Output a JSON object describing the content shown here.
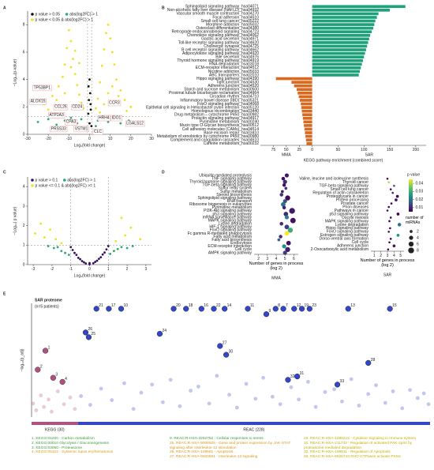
{
  "chart_data": [
    {
      "panel": "A",
      "type": "scatter",
      "xlabel": "Log₂(fold change)",
      "ylabel": "−Log₁₀(p-value)",
      "xlim": [
        -30,
        30
      ],
      "xticks": [
        -30,
        -20,
        -10,
        0,
        10,
        20,
        30
      ],
      "ylim": [
        0,
        9
      ],
      "yticks": [
        0,
        2,
        4,
        6,
        8
      ],
      "thresholds": {
        "x": [
          -1,
          1
        ],
        "y": 1.3
      },
      "series": [
        {
          "name": "p value > 0.05",
          "color": "#111111",
          "x": [
            -0.9,
            -0.6,
            -0.3,
            0,
            0.3,
            0.6,
            0.9,
            -0.5,
            0.5,
            0
          ],
          "values": [
            0.5,
            1.5,
            2.5,
            0.8,
            3.0,
            1.8,
            0.6,
            3.5,
            2.2,
            4.0
          ]
        },
        {
          "name": "abs(log2FC) > 1",
          "color": "#2fa784",
          "x": [
            -25,
            -20,
            -16,
            -12,
            -9,
            -6,
            -4,
            -3,
            3,
            4,
            6,
            9,
            12,
            15,
            19,
            24
          ],
          "values": [
            0.9,
            1.1,
            0.7,
            1.0,
            1.2,
            0.8,
            1.1,
            0.5,
            0.6,
            1.0,
            1.2,
            0.9,
            1.1,
            0.8,
            1.0,
            0.7
          ]
        },
        {
          "name": "p value < 0.05 & abs(log2FC) > 1",
          "color": "#eee12a",
          "x": [
            -22,
            -18,
            -15,
            -13,
            -12,
            -11,
            -10,
            -9,
            -8,
            -7,
            -6,
            -5,
            -4,
            -3,
            -14,
            -12,
            -9,
            -7,
            -5,
            -16,
            -20,
            3,
            4,
            5,
            6,
            7,
            8,
            9,
            10,
            11,
            12,
            13,
            15,
            17,
            20,
            5,
            7,
            9,
            11,
            14,
            18
          ],
          "values": [
            2.2,
            2.8,
            3.5,
            4.2,
            5.1,
            6.3,
            7.6,
            6.8,
            5.5,
            4.4,
            3.6,
            2.9,
            2.3,
            1.9,
            2.1,
            3.0,
            4.9,
            6.1,
            5.2,
            2.5,
            1.8,
            1.9,
            2.6,
            3.8,
            5.0,
            6.2,
            7.4,
            8.0,
            7.0,
            6.0,
            5.1,
            4.0,
            3.2,
            2.5,
            2.0,
            1.6,
            2.2,
            3.0,
            3.5,
            2.8,
            1.7
          ]
        }
      ],
      "annotations": [
        {
          "text": "TP53BP1",
          "x": -23,
          "y": 3.4
        },
        {
          "text": "ALOX15",
          "x": -25,
          "y": 2.4
        },
        {
          "text": "CCL26",
          "x": -14,
          "y": 2.0
        },
        {
          "text": "CD24",
          "x": -6,
          "y": 2.0
        },
        {
          "text": "ATP2A3",
          "x": -16,
          "y": 1.4
        },
        {
          "text": "CPA3",
          "x": -9,
          "y": 0.9
        },
        {
          "text": "PRSS33",
          "x": -15,
          "y": 0.4
        },
        {
          "text": "VSTM1",
          "x": -4,
          "y": 0.4
        },
        {
          "text": "CLC",
          "x": 4,
          "y": 0.2
        },
        {
          "text": "CCR3",
          "x": 12,
          "y": 2.3
        },
        {
          "text": "HRH4",
          "x": 7,
          "y": 1.2
        },
        {
          "text": "IDO1",
          "x": 13,
          "y": 1.2
        },
        {
          "text": "LGALS12",
          "x": 22,
          "y": 0.8
        }
      ]
    },
    {
      "panel": "B",
      "type": "hbar",
      "xlabel": "KEGG pathway enrichment (combined score)",
      "xlim": [
        -100,
        220
      ],
      "xticks": [
        {
          "value": -75,
          "label": "75"
        },
        {
          "value": -50,
          "label": "50"
        },
        {
          "value": -25,
          "label": "25"
        },
        0,
        50,
        100,
        150,
        200
      ],
      "series": [
        {
          "name": "SAR",
          "color": "#1fa27a",
          "categories": [
            "Sphingolipid signaling pathway_hsa04071",
            "Non-alcoholic fatty liver disease (NAFLD)_hsa04932",
            "Vascular smooth muscle contraction_hsa04270",
            "Focal adhesion_hsa04510",
            "Small cell lung cancer_hsa05222",
            "Morphine addiction_hsa05032",
            "Osteoclast differentiation_hsa04380",
            "Retrograde endocannabinoid signaling_hsa04723",
            "Chemokine signaling pathway_hsa04062",
            "Gastric acid secretion_hsa04971",
            "Toll-like receptor signaling pathway_hsa04620",
            "Cholinergic synapse_hsa04725",
            "B cell receptor signaling pathway_hsa04662",
            "Adipocytokine signaling pathway_hsa04920",
            "Bile secretion_hsa04976",
            "Thyroid hormone signaling pathway_hsa04919",
            "RNA degradation_hsa03018",
            "ECM-receptor interaction_hsa04512",
            "Nicotine addiction_hsa05033",
            "ABC transporters_hsa02010"
          ],
          "values": [
            180,
            150,
            128,
            125,
            122,
            120,
            118,
            115,
            112,
            110,
            108,
            106,
            104,
            102,
            100,
            98,
            96,
            94,
            92,
            90
          ]
        },
        {
          "name": "MMA",
          "color": "#d9691f",
          "categories": [
            "Hippo signaling pathway_hsa04390",
            "Tight junction_hsa04530",
            "Adherens junction_hsa04520",
            "Starch and sucrose metabolism_hsa00500",
            "Proximal tubule bicarbonate reclamation_hsa04964",
            "Circadian rhythm_hsa04710",
            "Inflammatory bowel disease (IBD)_hsa05321",
            "FoxO signaling pathway_hsa04068",
            "Epithelial cell signaling in Helicobacter pylori infection_hsa05120",
            "Homologous recombination_hsa03440",
            "Drug metabolism – cytochrome P450_hsa00982",
            "Prolactin signaling pathway_hsa04917",
            "Pyrimidine metabolism_hsa00240",
            "Mucin type O-Glycan biosynthesis_hsa00512",
            "Cell adhesion molecules (CAMs)_hsa04514",
            "Base excision repair_hsa03410",
            "Metabolism of xenobiotics by cytochrome P450_hsa00980",
            "Complement and coagulation cascades_hsa04610",
            "Caffeine metabolism_hsa00232"
          ],
          "values": [
            -70,
            -40,
            -35,
            -30,
            -28,
            -26,
            -24,
            -22,
            -21,
            -20,
            -19,
            -18,
            -17,
            -16,
            -15,
            -14,
            -13,
            -12,
            -11
          ]
        }
      ]
    },
    {
      "panel": "C",
      "type": "scatter",
      "xlabel": "Log₂(fold change)",
      "ylabel": "−Log₁₀( p value)",
      "xlim": [
        -3.3,
        3.3
      ],
      "xticks": [
        -3,
        -2,
        -1,
        0,
        1,
        2,
        3
      ],
      "ylim": [
        0,
        4.5
      ],
      "yticks": [
        0,
        1,
        2,
        3,
        4
      ],
      "thresholds": {
        "x": [
          -1,
          1
        ],
        "y": 1
      },
      "series": [
        {
          "name": "p value > 0.1",
          "color": "#35105f",
          "x": [
            -1,
            -0.8,
            -0.6,
            -0.4,
            -0.2,
            0,
            0.2,
            0.4,
            0.6,
            0.8,
            1,
            -0.9,
            -0.5,
            0.5,
            0.9,
            -0.7,
            0.7,
            -0.3,
            0.3,
            0
          ],
          "values": [
            0.9,
            0.6,
            0.35,
            0.18,
            0.06,
            0.02,
            0.07,
            0.2,
            0.38,
            0.62,
            0.95,
            0.75,
            0.28,
            0.3,
            0.78,
            0.5,
            0.52,
            0.12,
            0.14,
            0.08
          ]
        },
        {
          "name": "abs(log2FC) > 1",
          "color": "#29a877",
          "x": [
            -2.2,
            -1.9,
            -1.7,
            -1.5,
            -1.3,
            -1.1,
            1.1,
            1.3,
            1.5,
            1.7,
            2.0,
            2.3
          ],
          "values": [
            0.95,
            0.85,
            0.9,
            0.7,
            0.6,
            0.5,
            0.55,
            0.7,
            0.8,
            0.9,
            0.85,
            0.95
          ]
        },
        {
          "name": "p value <= 0.1 & abs(log2FC) >= 1",
          "color": "#e8e61a",
          "x": [
            -2.9,
            -2.6,
            -2.4,
            -2.1,
            -1.8,
            -1.5,
            1.4,
            1.7,
            1.9,
            2.2,
            2.7
          ],
          "values": [
            1.6,
            2.1,
            1.4,
            1.8,
            1.3,
            1.1,
            1.2,
            2.4,
            1.5,
            1.9,
            1.3
          ]
        }
      ]
    },
    {
      "panel": "D",
      "type": "dot",
      "title": "MMA",
      "xlabel": "Number of genes in process (log 2)",
      "xlim": [
        1.5,
        6.5
      ],
      "xticks": [
        2,
        3,
        4,
        5,
        6
      ],
      "categories": [
        "Ubiquitin mediated proteolysis",
        "TNF signaling pathway",
        "Thyroid hormone signaling pathway",
        "TGF-beta signaling pathway",
        "Sulfur relay system",
        "Sulfur metabolism",
        "Steroid biosynthesis",
        "Sphingolipid signaling pathway",
        "RNA transport",
        "Ribosome biogenesis in eukaryotes",
        "Pyrimidine metabolism",
        "PI3K-Akt signaling pathway",
        "p53 signaling pathway",
        "mRNA surveillance pathway",
        "MAPK signaling pathway",
        "Lysine degradation",
        "HIF-1 signaling pathway",
        "FoxO signaling pathway",
        "Fc gamma R-mediated phagocytosis",
        "Fatty acid metabolism",
        "Fatty acid biosynthesis",
        "Endocytosis",
        "ECM-receptor interaction",
        "Cell cycle",
        "AMPK signaling pathway"
      ],
      "values": [
        5.2,
        4.8,
        5.0,
        4.9,
        5.1,
        4.7,
        4.6,
        5.3,
        5.0,
        4.8,
        4.9,
        5.8,
        5.1,
        5.2,
        5.9,
        4.6,
        5.2,
        5.6,
        5.2,
        4.5,
        4.3,
        5.4,
        4.9,
        5.3,
        5.0
      ],
      "pvalues": [
        0.008,
        0.006,
        0.01,
        0.007,
        0.012,
        0.009,
        0.011,
        0.006,
        0.015,
        0.02,
        0.009,
        0.008,
        0.01,
        0.022,
        0.007,
        0.01,
        0.013,
        0.03,
        0.045,
        0.01,
        0.018,
        0.007,
        0.025,
        0.009,
        0.012
      ],
      "sizes": [
        4,
        3,
        4,
        3,
        2,
        2,
        3,
        6,
        4,
        5,
        3,
        8,
        5,
        4,
        7,
        3,
        5,
        6,
        5,
        3,
        2,
        5,
        4,
        6,
        4
      ]
    },
    {
      "type": "dot",
      "title": "SAR",
      "xlabel": "Number of genes in process (log 2)",
      "xlim": [
        0.5,
        5.5
      ],
      "xticks": [
        1,
        2,
        3,
        4,
        5
      ],
      "categories": [
        "Valine, leucine and isoleucine synthesis",
        "Thyroid cancer",
        "TGF-beta signaling pathway",
        "Small cell lung cancer",
        "Regulation of actin cytoskeleton",
        "Proteoglycans in cancer",
        "Protein processing",
        "Prostate cancer",
        "Prion diseases",
        "Pathways in cancer",
        "p53 signaling pathway",
        "Oocyte meiosis",
        "MAPK signaling pathway",
        "Lysine degradation",
        "Hippo signaling pathway",
        "FoxO signaling pathway",
        "Estrogen signaling pathway",
        "Dorso-ventral axis formation",
        "Cell cycle",
        "Adherens junction",
        "2-Oxocarboxylic acid metabolism"
      ],
      "values": [
        3.0,
        3.2,
        4.0,
        3.5,
        3.8,
        4.5,
        4.3,
        3.6,
        3.2,
        3.0,
        4.6,
        3.5,
        3.3,
        4.8,
        3.4,
        3.2,
        4.6,
        3.5,
        3.3,
        4.0,
        3.1
      ],
      "pvalues": [
        0.005,
        0.04,
        0.015,
        0.005,
        0.008,
        0.006,
        0.007,
        0.005,
        0.005,
        0.006,
        0.005,
        0.006,
        0.005,
        0.02,
        0.005,
        0.006,
        0.025,
        0.005,
        0.005,
        0.007,
        0.005
      ],
      "sizes": [
        1,
        1,
        1,
        1,
        1,
        2,
        2,
        1,
        1,
        1,
        2,
        1,
        1,
        3,
        1,
        1,
        2,
        1,
        1,
        2,
        1
      ],
      "color_legend": {
        "title": "p value",
        "lim": [
          0.005,
          0.045
        ],
        "ticks": [
          0.01,
          0.02,
          0.03,
          0.04
        ]
      },
      "size_legend": {
        "title": "number of miRNAs",
        "ticks": [
          2,
          4,
          6,
          8
        ]
      }
    },
    {
      "panel": "E",
      "type": "manhattan",
      "title": "SAR proteome",
      "subtitle": "(n=5 patients)",
      "ylabel": "−log₁₀(p_adj)",
      "xlim": [
        0,
        258
      ],
      "ylim": [
        0,
        16.8
      ],
      "groups": [
        {
          "name": "KEGG (30)",
          "color": "#b0527f",
          "range": [
            0,
            30
          ]
        },
        {
          "name": "REAC (228)",
          "color": "#3446c4",
          "range": [
            30,
            258
          ]
        }
      ],
      "background": {
        "x": [
          1,
          3,
          6,
          8,
          11,
          13,
          17,
          21,
          25,
          28,
          32,
          38,
          45,
          52,
          60,
          66,
          71,
          78,
          85,
          90,
          96,
          103,
          108,
          115,
          120,
          128,
          133,
          139,
          145,
          150,
          156,
          161,
          168,
          173,
          179,
          184,
          190,
          196,
          201,
          207,
          212,
          218,
          223,
          229,
          234,
          240,
          245,
          250,
          254,
          257
        ],
        "values": [
          2.0,
          1.0,
          3.2,
          1.5,
          2.6,
          0.8,
          3.8,
          1.9,
          2.9,
          1.2,
          3.1,
          1.8,
          4.2,
          2.5,
          5.0,
          1.2,
          3.6,
          4.8,
          2.2,
          5.5,
          1.6,
          3.9,
          4.5,
          2.0,
          6.1,
          3.3,
          1.4,
          4.9,
          2.7,
          5.8,
          3.0,
          1.9,
          4.4,
          2.6,
          5.2,
          1.5,
          3.7,
          4.1,
          2.3,
          5.6,
          1.7,
          3.4,
          4.7,
          2.1,
          3.8,
          1.3,
          4.0,
          2.8,
          3.5,
          1.9
        ]
      },
      "labeled": {
        "labels": [
          "1",
          "2",
          "3",
          "4",
          "21",
          "17",
          "10",
          "20",
          "18",
          "16",
          "22",
          "14",
          "11",
          "9",
          "8",
          "7",
          "12",
          "19",
          "23",
          "13",
          "15",
          "26",
          "25",
          "24",
          "27",
          "30",
          "28",
          "31",
          "32",
          "33"
        ],
        "x": [
          9,
          4,
          14,
          20,
          42,
          50,
          58,
          92,
          100,
          110,
          118,
          125,
          140,
          152,
          158,
          163,
          170,
          175,
          180,
          205,
          232,
          35,
          37,
          83,
          122,
          126,
          218,
          172,
          166,
          198
        ],
        "values": [
          9.8,
          7.0,
          5.8,
          5.2,
          16,
          16,
          16,
          16,
          16,
          16,
          16,
          16,
          16,
          15.2,
          16,
          16,
          16,
          16,
          16,
          16,
          16,
          12.5,
          11.8,
          12.3,
          10.5,
          9.2,
          8.0,
          6.0,
          5.5,
          4.8
        ]
      },
      "terms": [
        {
          "text": "1. KEGG:01200 - Carbon metabolism",
          "color": "#3a9c3a"
        },
        {
          "text": "2. KEGG:00010 Glycolysis / Gluconeogenesis",
          "color": "#3a9c3a"
        },
        {
          "text": "3. KEGG:03050 - Proteasome",
          "color": "#3a9c3a"
        },
        {
          "text": "4. KEGG:05322 - Systemic lupus erythematosus",
          "color": "#d4a017"
        },
        {
          "text": "9. REAC:R-HSA-2262752 - Cellular responses to stress",
          "color": "#3a9c3a"
        },
        {
          "text": "25. REAC:R-HSA-9006925 - Gene and protein expression by JAK-STAT signaling after Interleukin-12 stimulation",
          "color": "#d99a1a"
        },
        {
          "text": "26. REAC:R-HSA-109581 - Apoptosis",
          "color": "#d99a1a"
        },
        {
          "text": "27. REAC:R-HSA-9020591 - Interleukin-12 signaling",
          "color": "#d99a1a"
        },
        {
          "text": "28. REAC:R-HSA-1280215 - Cytokine Signaling in Immune system",
          "color": "#c4b000"
        },
        {
          "text": "31. REAC:R-HSA-211733 - Regulation of activated PAK-2p34 by proteasome mediated degradation",
          "color": "#c4b000"
        },
        {
          "text": "32. REAC:R-HSA-169911 - Regulation of Apoptosis",
          "color": "#c4b000"
        },
        {
          "text": "33. REAC:R-HSA-9625743 RHO GTPases activate PKNs",
          "color": "#c4b000"
        }
      ]
    }
  ]
}
